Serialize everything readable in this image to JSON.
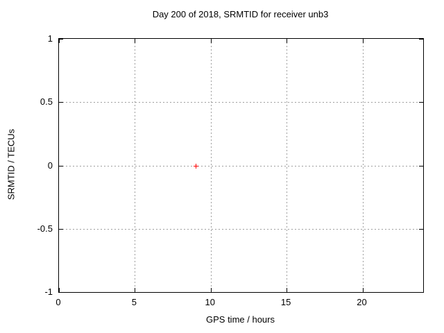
{
  "chart_data": {
    "type": "scatter",
    "title": "Day 200 of 2018, SRMTID for receiver unb3",
    "xlabel": "GPS time / hours",
    "ylabel": "SRMTID / TECUs",
    "xlim": [
      0,
      24
    ],
    "ylim": [
      -1,
      1
    ],
    "xticks": [
      {
        "value": 0,
        "label": "0"
      },
      {
        "value": 5,
        "label": "5"
      },
      {
        "value": 10,
        "label": "10"
      },
      {
        "value": 15,
        "label": "15"
      },
      {
        "value": 20,
        "label": "20"
      }
    ],
    "yticks": [
      {
        "value": 1,
        "label": "1"
      },
      {
        "value": 0.5,
        "label": "0.5"
      },
      {
        "value": 0,
        "label": "0"
      },
      {
        "value": -0.5,
        "label": "-0.5"
      },
      {
        "value": -1,
        "label": "-1"
      }
    ],
    "grid": true,
    "legend": "none",
    "series": [
      {
        "name": "SRMTID",
        "marker": "plus",
        "color": "#ff0000",
        "points": [
          {
            "x": 9,
            "y": 0
          }
        ]
      }
    ],
    "colors": {
      "background": "#ffffff",
      "border": "#000000",
      "grid": "#9e9e9e",
      "text": "#000000"
    }
  }
}
